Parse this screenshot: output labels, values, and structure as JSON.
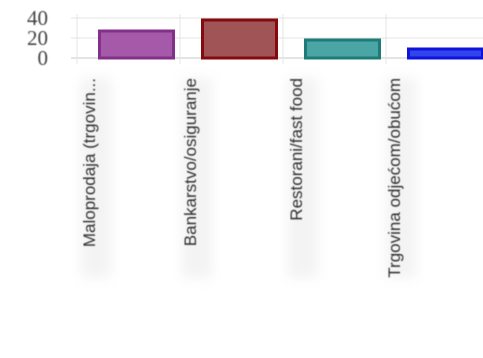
{
  "chart_data": {
    "type": "bar",
    "categories": [
      "Maloprodaja (trgovin...",
      "Bankarstvo/osiguranje",
      "Restorani/fast food",
      "Trgovina odjećom/obućom"
    ],
    "values": [
      27,
      38,
      18,
      9
    ],
    "colors": [
      "#a45aa8",
      "#a05456",
      "#4aa6a4",
      "#3344ee"
    ],
    "border_colors": [
      "#84308a",
      "#840a0e",
      "#1f7b78",
      "#0e14d8"
    ],
    "y_ticks": [
      0,
      20,
      40
    ],
    "ylim": [
      0,
      40
    ],
    "grid": true,
    "title": "",
    "xlabel": "",
    "ylabel": ""
  }
}
